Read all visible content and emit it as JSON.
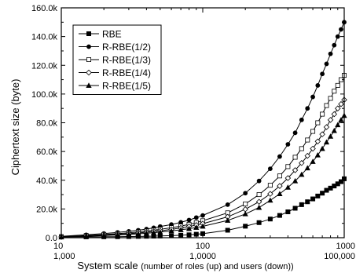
{
  "chart_data": {
    "type": "line",
    "xscale": "log",
    "xlim": [
      10,
      1000
    ],
    "ylim": [
      0,
      160000
    ],
    "grid": false,
    "legend_position": "top-left",
    "ylabel": "Ciphertext size (byte)",
    "xlabel_main": "System scale ",
    "xlabel_note": "(number of roles (up) and users (down))",
    "x_ticks": [
      10,
      100,
      1000
    ],
    "x_tick_labels_top": [
      "10",
      "100",
      "1000"
    ],
    "x_tick_labels_bottom": [
      "1,000",
      "1,0000",
      "100,000"
    ],
    "y_ticks": [
      0,
      20000,
      40000,
      60000,
      80000,
      100000,
      120000,
      140000,
      160000
    ],
    "y_tick_labels": [
      "0.0",
      "20.0k",
      "40.0k",
      "60.0k",
      "80.0k",
      "100.0k",
      "120.0k",
      "140.0k",
      "160.0k"
    ],
    "x": [
      10,
      15,
      20,
      25,
      30,
      35,
      40,
      45,
      50,
      60,
      70,
      80,
      90,
      100,
      150,
      200,
      250,
      300,
      350,
      400,
      450,
      500,
      550,
      600,
      650,
      700,
      750,
      800,
      850,
      900,
      950,
      1000
    ],
    "series": [
      {
        "name": "RBE",
        "marker": "square",
        "values": [
          600,
          600,
          650,
          700,
          800,
          900,
          1000,
          1100,
          1200,
          1400,
          1700,
          2000,
          2400,
          2800,
          5200,
          8000,
          10500,
          13000,
          15500,
          18000,
          20500,
          23000,
          25000,
          27000,
          29000,
          31000,
          33000,
          34500,
          36000,
          37500,
          39000,
          41000
        ]
      },
      {
        "name": "R-RBE(1/2)",
        "marker": "circle",
        "values": [
          1000,
          2000,
          2900,
          3700,
          4400,
          5200,
          6000,
          6900,
          7800,
          9200,
          10700,
          12300,
          14000,
          15500,
          23000,
          31000,
          39500,
          48000,
          56500,
          65000,
          73000,
          82000,
          90000,
          98000,
          106000,
          114000,
          121000,
          128000,
          134000,
          140000,
          145000,
          150000
        ]
      },
      {
        "name": "R-RBE(1/3)",
        "marker": "square-open",
        "values": [
          700,
          1500,
          2200,
          2800,
          3400,
          4000,
          4600,
          5200,
          5800,
          7000,
          8100,
          9300,
          10500,
          11800,
          17300,
          23500,
          30000,
          36500,
          43000,
          49500,
          56000,
          62000,
          68000,
          74000,
          80000,
          86000,
          92000,
          97000,
          102000,
          106000,
          110000,
          113000
        ]
      },
      {
        "name": "R-RBE(1/4)",
        "marker": "diamond",
        "values": [
          550,
          1200,
          1800,
          2300,
          2800,
          3300,
          3800,
          4300,
          4800,
          5800,
          6800,
          7800,
          8800,
          9800,
          14500,
          19800,
          25000,
          30500,
          36000,
          41500,
          47000,
          52000,
          57000,
          62000,
          67000,
          72000,
          77000,
          82000,
          86000,
          90000,
          93000,
          96000
        ]
      },
      {
        "name": "R-RBE(1/5)",
        "marker": "triangle",
        "values": [
          450,
          1000,
          1500,
          1900,
          2300,
          2700,
          3100,
          3500,
          3900,
          4700,
          5500,
          6300,
          7100,
          7900,
          12000,
          16500,
          21000,
          26000,
          30500,
          35000,
          39500,
          44000,
          48500,
          53000,
          57500,
          62000,
          66500,
          70500,
          74500,
          78500,
          82000,
          85000
        ]
      }
    ]
  }
}
